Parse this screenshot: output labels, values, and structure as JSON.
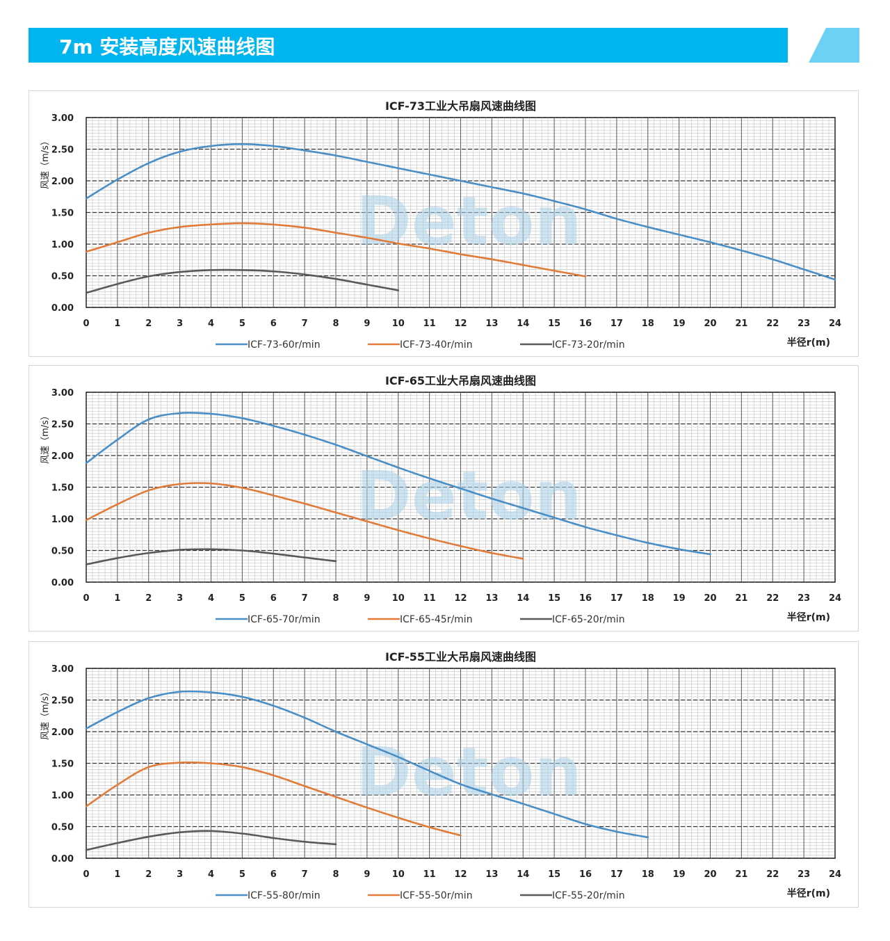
{
  "banner": {
    "title": "7m 安装高度风速曲线图",
    "color": "#00b4ee",
    "accent_color": "#6dd0f5"
  },
  "watermark": "Deton",
  "chart_data": [
    {
      "type": "line",
      "title": "ICF-73工业大吊扇风速曲线图",
      "ylabel": "风速（m/s）",
      "xlabel": "半径r(m)",
      "xlim": [
        0,
        24
      ],
      "ylim": [
        0,
        3
      ],
      "xticks": [
        "0",
        "1",
        "2",
        "3",
        "4",
        "5",
        "6",
        "7",
        "8",
        "9",
        "10",
        "11",
        "12",
        "13",
        "14",
        "15",
        "16",
        "17",
        "18",
        "19",
        "20",
        "21",
        "22",
        "23",
        "24"
      ],
      "yticks": [
        "0.00",
        "0.50",
        "1.00",
        "1.50",
        "2.00",
        "2.50",
        "3.00"
      ],
      "series": [
        {
          "name": "ICF-73-60r/min",
          "color": "#4a8ec6",
          "x": [
            0,
            1,
            2,
            3,
            4,
            5,
            6,
            7,
            8,
            9,
            10,
            11,
            12,
            13,
            14,
            15,
            16,
            17,
            18,
            19,
            20,
            21,
            22,
            23,
            24
          ],
          "y": [
            1.72,
            2.02,
            2.28,
            2.46,
            2.55,
            2.58,
            2.55,
            2.48,
            2.4,
            2.3,
            2.2,
            2.1,
            2.0,
            1.9,
            1.8,
            1.68,
            1.55,
            1.4,
            1.27,
            1.15,
            1.03,
            0.9,
            0.76,
            0.6,
            0.44
          ]
        },
        {
          "name": "ICF-73-40r/min",
          "color": "#e07b39",
          "x": [
            0,
            1,
            2,
            3,
            4,
            5,
            6,
            7,
            8,
            9,
            10,
            11,
            12,
            13,
            14,
            15,
            16
          ],
          "y": [
            0.88,
            1.03,
            1.18,
            1.27,
            1.31,
            1.33,
            1.31,
            1.26,
            1.18,
            1.1,
            1.01,
            0.93,
            0.84,
            0.76,
            0.67,
            0.58,
            0.49
          ]
        },
        {
          "name": "ICF-73-20r/min",
          "color": "#595959",
          "x": [
            0,
            1,
            2,
            3,
            4,
            5,
            6,
            7,
            8,
            9,
            10
          ],
          "y": [
            0.23,
            0.37,
            0.49,
            0.56,
            0.59,
            0.59,
            0.57,
            0.52,
            0.45,
            0.36,
            0.27
          ]
        }
      ]
    },
    {
      "type": "line",
      "title": "ICF-65工业大吊扇风速曲线图",
      "ylabel": "风速（m/s）",
      "xlabel": "半径r(m)",
      "xlim": [
        0,
        24
      ],
      "ylim": [
        0,
        3
      ],
      "xticks": [
        "0",
        "1",
        "2",
        "3",
        "4",
        "5",
        "6",
        "7",
        "8",
        "9",
        "10",
        "11",
        "12",
        "13",
        "14",
        "15",
        "16",
        "17",
        "18",
        "19",
        "20",
        "21",
        "22",
        "23",
        "24"
      ],
      "yticks": [
        "0.00",
        "0.50",
        "1.00",
        "1.50",
        "2.00",
        "2.50",
        "3.00"
      ],
      "series": [
        {
          "name": "ICF-65-70r/min",
          "color": "#4a8ec6",
          "x": [
            0,
            1,
            2,
            3,
            4,
            5,
            6,
            7,
            8,
            9,
            10,
            11,
            12,
            13,
            14,
            15,
            16,
            17,
            18,
            19,
            20
          ],
          "y": [
            1.88,
            2.25,
            2.57,
            2.67,
            2.66,
            2.59,
            2.47,
            2.33,
            2.17,
            1.99,
            1.81,
            1.64,
            1.48,
            1.32,
            1.17,
            1.02,
            0.87,
            0.74,
            0.62,
            0.52,
            0.44
          ]
        },
        {
          "name": "ICF-65-45r/min",
          "color": "#e07b39",
          "x": [
            0,
            1,
            2,
            3,
            4,
            5,
            6,
            7,
            8,
            9,
            10,
            11,
            12,
            13,
            14
          ],
          "y": [
            0.98,
            1.23,
            1.45,
            1.55,
            1.56,
            1.49,
            1.37,
            1.24,
            1.1,
            0.96,
            0.82,
            0.69,
            0.57,
            0.46,
            0.37
          ]
        },
        {
          "name": "ICF-65-20r/min",
          "color": "#595959",
          "x": [
            0,
            1,
            2,
            3,
            4,
            5,
            6,
            7,
            8
          ],
          "y": [
            0.28,
            0.38,
            0.46,
            0.51,
            0.52,
            0.5,
            0.45,
            0.39,
            0.33
          ]
        }
      ]
    },
    {
      "type": "line",
      "title": "ICF-55工业大吊扇风速曲线图",
      "ylabel": "风速（m/s）",
      "xlabel": "半径r(m)",
      "xlim": [
        0,
        24
      ],
      "ylim": [
        0,
        3
      ],
      "xticks": [
        "0",
        "1",
        "2",
        "3",
        "4",
        "5",
        "6",
        "7",
        "8",
        "9",
        "10",
        "11",
        "12",
        "13",
        "14",
        "15",
        "16",
        "17",
        "18",
        "19",
        "20",
        "21",
        "22",
        "23",
        "24"
      ],
      "yticks": [
        "0.00",
        "0.50",
        "1.00",
        "1.50",
        "2.00",
        "2.50",
        "3.00"
      ],
      "series": [
        {
          "name": "ICF-55-80r/min",
          "color": "#4a8ec6",
          "x": [
            0,
            1,
            2,
            3,
            4,
            5,
            6,
            7,
            8,
            9,
            10,
            11,
            12,
            13,
            14,
            15,
            16,
            17,
            18
          ],
          "y": [
            2.05,
            2.31,
            2.53,
            2.63,
            2.62,
            2.55,
            2.41,
            2.22,
            2.0,
            1.8,
            1.6,
            1.38,
            1.17,
            1.01,
            0.86,
            0.7,
            0.54,
            0.42,
            0.33
          ]
        },
        {
          "name": "ICF-55-50r/min",
          "color": "#e07b39",
          "x": [
            0,
            1,
            2,
            3,
            4,
            5,
            6,
            7,
            8,
            9,
            10,
            11,
            12
          ],
          "y": [
            0.82,
            1.16,
            1.44,
            1.51,
            1.5,
            1.44,
            1.31,
            1.14,
            0.97,
            0.8,
            0.64,
            0.49,
            0.36
          ]
        },
        {
          "name": "ICF-55-20r/min",
          "color": "#595959",
          "x": [
            0,
            1,
            2,
            3,
            4,
            5,
            6,
            7,
            8
          ],
          "y": [
            0.13,
            0.24,
            0.34,
            0.41,
            0.43,
            0.39,
            0.32,
            0.26,
            0.22
          ]
        }
      ]
    }
  ]
}
